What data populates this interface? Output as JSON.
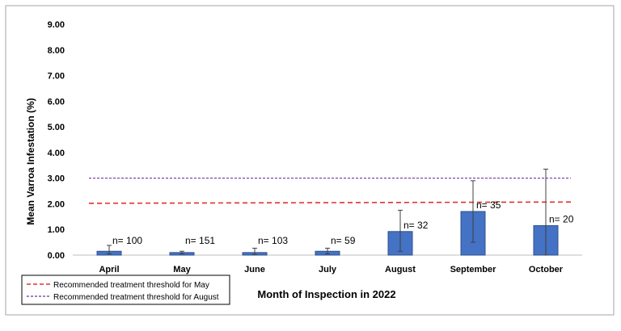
{
  "chart_data": {
    "type": "bar",
    "title": "",
    "xlabel": "Month of Inspection in 2022",
    "ylabel": "Mean Varroa Infestation (%)",
    "ylim": [
      0,
      9
    ],
    "yticks": [
      "0.00",
      "1.00",
      "2.00",
      "3.00",
      "4.00",
      "5.00",
      "6.00",
      "7.00",
      "8.00",
      "9.00"
    ],
    "grid": false,
    "categories": [
      "April",
      "May",
      "June",
      "July",
      "August",
      "September",
      "October"
    ],
    "series": [
      {
        "name": "Mean Varroa Infestation",
        "values": [
          0.15,
          0.1,
          0.1,
          0.15,
          0.92,
          1.7,
          1.15
        ],
        "error_low": [
          0.05,
          0.05,
          0.02,
          0.05,
          0.15,
          0.5,
          0.0
        ],
        "error_high": [
          0.38,
          0.15,
          0.27,
          0.27,
          1.75,
          2.9,
          3.35
        ],
        "color": "#4472C4"
      }
    ],
    "data_labels": [
      "n= 100",
      "n= 151",
      "n= 103",
      "n= 59",
      "n= 32",
      "n= 35",
      "n= 20"
    ],
    "reference_lines": [
      {
        "label": "Recommended treatment threshold for May",
        "y_start": 2.02,
        "y_end": 2.07,
        "color": "#e03030",
        "style": "dashed"
      },
      {
        "label": "Recommended treatment threshold for August",
        "y_start": 3.0,
        "y_end": 3.0,
        "color": "#7030a0",
        "style": "dashed"
      }
    ],
    "legend_position": "bottom-left"
  }
}
